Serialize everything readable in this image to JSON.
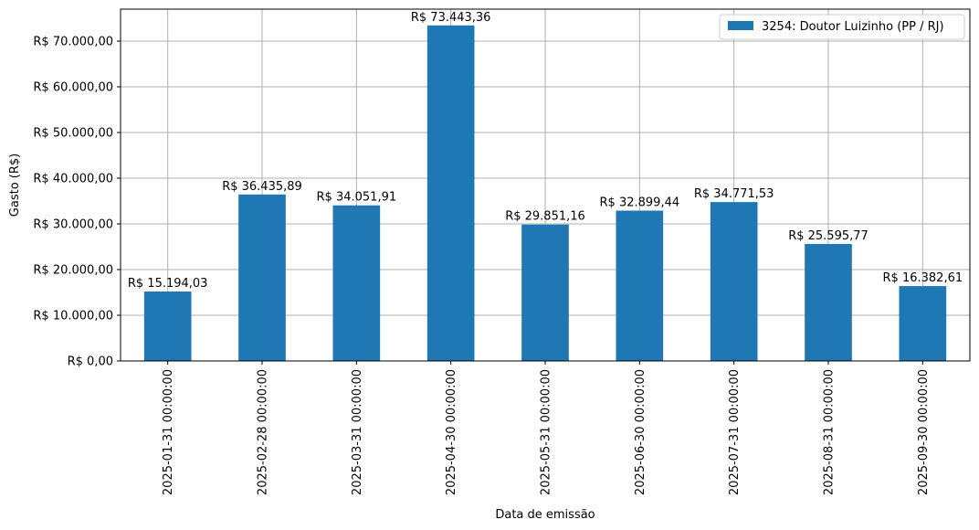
{
  "chart_data": {
    "type": "bar",
    "xlabel": "Data de emissão",
    "ylabel": "Gasto (R$)",
    "categories": [
      "2025-01-31 00:00:00",
      "2025-02-28 00:00:00",
      "2025-03-31 00:00:00",
      "2025-04-30 00:00:00",
      "2025-05-31 00:00:00",
      "2025-06-30 00:00:00",
      "2025-07-31 00:00:00",
      "2025-08-31 00:00:00",
      "2025-09-30 00:00:00"
    ],
    "series": [
      {
        "name": "3254: Doutor Luizinho (PP / RJ)",
        "color": "#1f77b4",
        "values": [
          15194.03,
          36435.89,
          34051.91,
          73443.36,
          29851.16,
          32899.44,
          34771.53,
          25595.77,
          16382.61
        ],
        "value_labels": [
          "R$ 15.194,03",
          "R$ 36.435,89",
          "R$ 34.051,91",
          "R$ 73.443,36",
          "R$ 29.851,16",
          "R$ 32.899,44",
          "R$ 34.771,53",
          "R$ 25.595,77",
          "R$ 16.382,61"
        ]
      }
    ],
    "ylim": [
      0,
      77000
    ],
    "yticks": [
      0,
      10000,
      20000,
      30000,
      40000,
      50000,
      60000,
      70000
    ],
    "ytick_labels": [
      "R$ 0,00",
      "R$ 10.000,00",
      "R$ 20.000,00",
      "R$ 30.000,00",
      "R$ 40.000,00",
      "R$ 50.000,00",
      "R$ 60.000,00",
      "R$ 70.000,00"
    ],
    "grid": true,
    "legend_position": "top-right"
  }
}
